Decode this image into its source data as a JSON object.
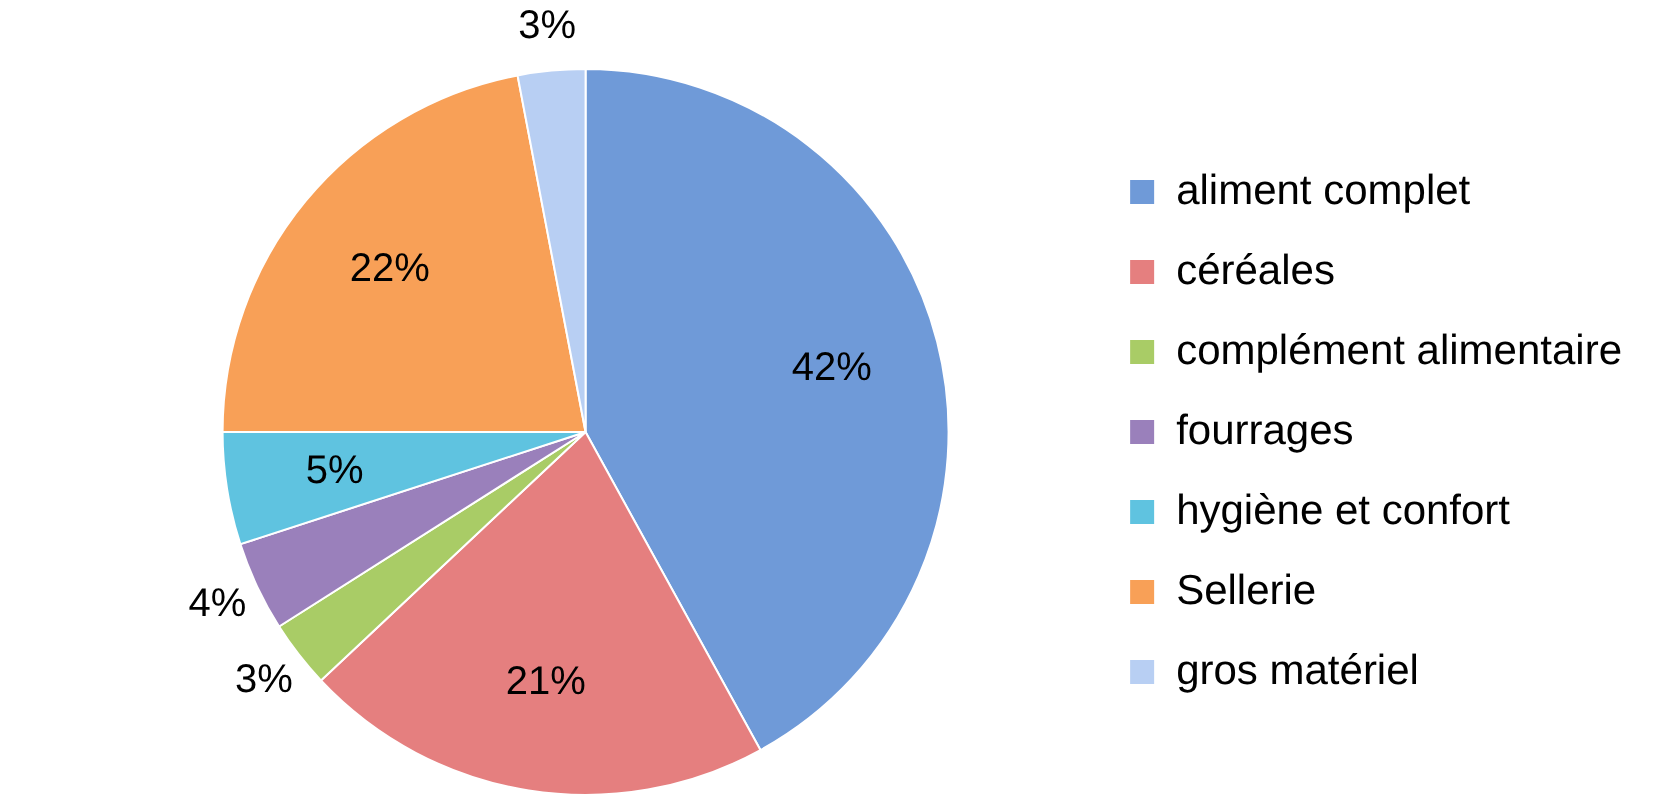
{
  "chart_data": {
    "type": "pie",
    "categories": [
      "aliment complet",
      "céréales",
      "complément alimentaire",
      "fourrages",
      "hygiène et confort",
      "Sellerie",
      "gros matériel"
    ],
    "values": [
      42,
      21,
      3,
      4,
      5,
      22,
      3
    ],
    "colors": [
      "#6f9ad8",
      "#e57f7f",
      "#a9cc66",
      "#9a80bb",
      "#5fc3e0",
      "#f8a057",
      "#b8cff3"
    ],
    "value_labels": [
      "42%",
      "21%",
      "3%",
      "4%",
      "5%",
      "22%",
      "3%"
    ],
    "legend": "right"
  }
}
